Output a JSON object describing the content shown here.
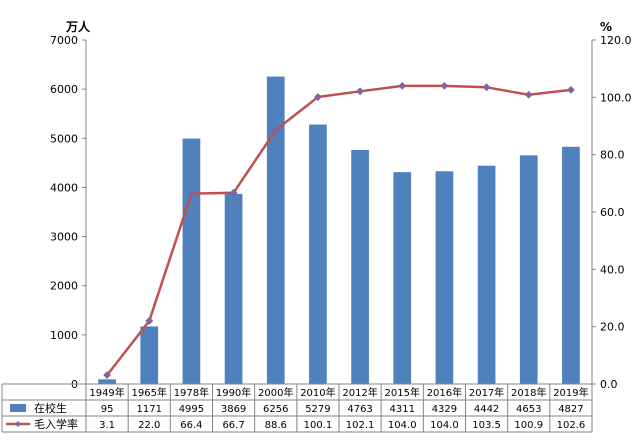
{
  "chart_data": {
    "type": "bar",
    "categories": [
      "1949年",
      "1965年",
      "1978年",
      "1990年",
      "2000年",
      "2010年",
      "2012年",
      "2015年",
      "2016年",
      "2017年",
      "2018年",
      "2019年"
    ],
    "y_left": {
      "unit": "万人",
      "ylim": [
        0,
        7000
      ],
      "ticks": [
        "0",
        "1000",
        "2000",
        "3000",
        "4000",
        "5000",
        "6000",
        "7000"
      ]
    },
    "y_right": {
      "unit": "%",
      "ylim": [
        0,
        120
      ],
      "ticks": [
        "0.0",
        "20.0",
        "40.0",
        "60.0",
        "80.0",
        "100.0",
        "120.0"
      ]
    },
    "grid": false,
    "legend_placement": "data-table-left",
    "series": [
      {
        "name": "在校生",
        "kind": "bar",
        "axis": "left",
        "color": "#4f81bd",
        "values": [
          95,
          1171,
          4995,
          3869,
          6256,
          5279,
          4763,
          4311,
          4329,
          4442,
          4653,
          4827
        ],
        "labels": [
          "95",
          "1171",
          "4995",
          "3869",
          "6256",
          "5279",
          "4763",
          "4311",
          "4329",
          "4442",
          "4653",
          "4827"
        ]
      },
      {
        "name": "毛入学率",
        "kind": "line",
        "axis": "right",
        "color": "#c0504d",
        "marker_color": "#8064a2",
        "values": [
          3.1,
          22.0,
          66.4,
          66.7,
          88.6,
          100.1,
          102.1,
          104.0,
          104.0,
          103.5,
          100.9,
          102.6
        ],
        "labels": [
          "3.1",
          "22.0",
          "66.4",
          "66.7",
          "88.6",
          "100.1",
          "102.1",
          "104.0",
          "104.0",
          "103.5",
          "100.9",
          "102.6"
        ]
      }
    ]
  }
}
